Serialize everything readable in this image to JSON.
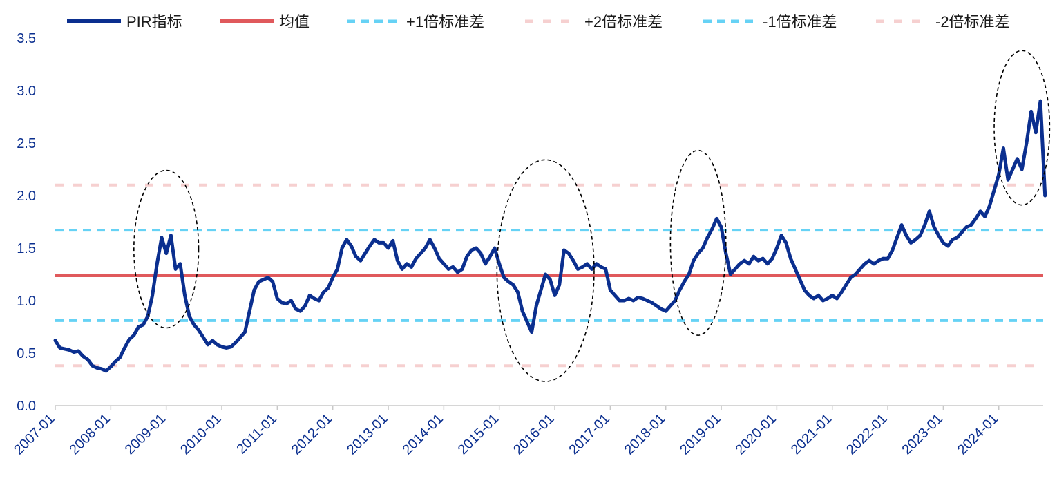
{
  "colors": {
    "pir": "#0b2f8f",
    "mean": "#e0595c",
    "sd1": "#66d2f5",
    "sd2": "#f6d0d0",
    "axis": "#c8c8c8",
    "tick_text": "#0b2f8f",
    "legend_text": "#1a1a1a",
    "ellipse": "#000000"
  },
  "chart_data": {
    "type": "line",
    "legend_position": "top",
    "grid": false,
    "xlabel": "",
    "ylabel": "",
    "x_ticks": [
      "2007-01",
      "2008-01",
      "2009-01",
      "2010-01",
      "2011-01",
      "2012-01",
      "2013-01",
      "2014-01",
      "2015-01",
      "2016-01",
      "2017-01",
      "2018-01",
      "2019-01",
      "2020-01",
      "2021-01",
      "2022-01",
      "2023-01",
      "2024-01"
    ],
    "x_range": [
      "2007-01",
      "2024-10"
    ],
    "y_ticks": [
      "0.0",
      "0.5",
      "1.0",
      "1.5",
      "2.0",
      "2.5",
      "3.0",
      "3.5"
    ],
    "ylim": [
      0,
      3.5
    ],
    "legend": [
      {
        "key": "pir",
        "label": "PIR指标",
        "style": "solid"
      },
      {
        "key": "mean",
        "label": "均值",
        "style": "solid"
      },
      {
        "key": "plus1sd",
        "label": "+1倍标准差",
        "style": "dashed"
      },
      {
        "key": "plus2sd",
        "label": "+2倍标准差",
        "style": "dashed"
      },
      {
        "key": "minus1sd",
        "label": "-1倍标准差",
        "style": "dashed"
      },
      {
        "key": "minus2sd",
        "label": "-2倍标准差",
        "style": "dashed"
      }
    ],
    "reference_lines": {
      "mean": 1.24,
      "plus1sd": 1.67,
      "plus2sd": 2.1,
      "minus1sd": 0.81,
      "minus2sd": 0.38
    },
    "series": [
      {
        "key": "pir",
        "name": "PIR指标",
        "points": [
          [
            "2007-01",
            0.62
          ],
          [
            "2007-02",
            0.55
          ],
          [
            "2007-03",
            0.54
          ],
          [
            "2007-04",
            0.53
          ],
          [
            "2007-05",
            0.51
          ],
          [
            "2007-06",
            0.52
          ],
          [
            "2007-07",
            0.47
          ],
          [
            "2007-08",
            0.44
          ],
          [
            "2007-09",
            0.38
          ],
          [
            "2007-10",
            0.36
          ],
          [
            "2007-11",
            0.35
          ],
          [
            "2007-12",
            0.33
          ],
          [
            "2008-01",
            0.37
          ],
          [
            "2008-02",
            0.42
          ],
          [
            "2008-03",
            0.46
          ],
          [
            "2008-04",
            0.55
          ],
          [
            "2008-05",
            0.63
          ],
          [
            "2008-06",
            0.67
          ],
          [
            "2008-07",
            0.75
          ],
          [
            "2008-08",
            0.77
          ],
          [
            "2008-09",
            0.85
          ],
          [
            "2008-10",
            1.05
          ],
          [
            "2008-11",
            1.35
          ],
          [
            "2008-12",
            1.6
          ],
          [
            "2009-01",
            1.45
          ],
          [
            "2009-02",
            1.62
          ],
          [
            "2009-03",
            1.3
          ],
          [
            "2009-04",
            1.35
          ],
          [
            "2009-05",
            1.05
          ],
          [
            "2009-06",
            0.85
          ],
          [
            "2009-07",
            0.77
          ],
          [
            "2009-08",
            0.72
          ],
          [
            "2009-09",
            0.65
          ],
          [
            "2009-10",
            0.58
          ],
          [
            "2009-11",
            0.62
          ],
          [
            "2009-12",
            0.58
          ],
          [
            "2010-01",
            0.56
          ],
          [
            "2010-02",
            0.55
          ],
          [
            "2010-03",
            0.56
          ],
          [
            "2010-04",
            0.6
          ],
          [
            "2010-05",
            0.65
          ],
          [
            "2010-06",
            0.7
          ],
          [
            "2010-07",
            0.9
          ],
          [
            "2010-08",
            1.1
          ],
          [
            "2010-09",
            1.18
          ],
          [
            "2010-10",
            1.2
          ],
          [
            "2010-11",
            1.22
          ],
          [
            "2010-12",
            1.18
          ],
          [
            "2011-01",
            1.02
          ],
          [
            "2011-02",
            0.98
          ],
          [
            "2011-03",
            0.97
          ],
          [
            "2011-04",
            1.0
          ],
          [
            "2011-05",
            0.92
          ],
          [
            "2011-06",
            0.9
          ],
          [
            "2011-07",
            0.95
          ],
          [
            "2011-08",
            1.05
          ],
          [
            "2011-09",
            1.02
          ],
          [
            "2011-10",
            1.0
          ],
          [
            "2011-11",
            1.08
          ],
          [
            "2011-12",
            1.12
          ],
          [
            "2012-01",
            1.22
          ],
          [
            "2012-02",
            1.3
          ],
          [
            "2012-03",
            1.5
          ],
          [
            "2012-04",
            1.58
          ],
          [
            "2012-05",
            1.52
          ],
          [
            "2012-06",
            1.42
          ],
          [
            "2012-07",
            1.38
          ],
          [
            "2012-08",
            1.45
          ],
          [
            "2012-09",
            1.52
          ],
          [
            "2012-10",
            1.58
          ],
          [
            "2012-11",
            1.55
          ],
          [
            "2012-12",
            1.55
          ],
          [
            "2013-01",
            1.5
          ],
          [
            "2013-02",
            1.57
          ],
          [
            "2013-03",
            1.38
          ],
          [
            "2013-04",
            1.3
          ],
          [
            "2013-05",
            1.35
          ],
          [
            "2013-06",
            1.32
          ],
          [
            "2013-07",
            1.4
          ],
          [
            "2013-08",
            1.45
          ],
          [
            "2013-09",
            1.5
          ],
          [
            "2013-10",
            1.58
          ],
          [
            "2013-11",
            1.5
          ],
          [
            "2013-12",
            1.4
          ],
          [
            "2014-01",
            1.35
          ],
          [
            "2014-02",
            1.3
          ],
          [
            "2014-03",
            1.32
          ],
          [
            "2014-04",
            1.27
          ],
          [
            "2014-05",
            1.3
          ],
          [
            "2014-06",
            1.42
          ],
          [
            "2014-07",
            1.48
          ],
          [
            "2014-08",
            1.5
          ],
          [
            "2014-09",
            1.45
          ],
          [
            "2014-10",
            1.35
          ],
          [
            "2014-11",
            1.42
          ],
          [
            "2014-12",
            1.5
          ],
          [
            "2015-01",
            1.35
          ],
          [
            "2015-02",
            1.22
          ],
          [
            "2015-03",
            1.18
          ],
          [
            "2015-04",
            1.15
          ],
          [
            "2015-05",
            1.08
          ],
          [
            "2015-06",
            0.9
          ],
          [
            "2015-07",
            0.8
          ],
          [
            "2015-08",
            0.7
          ],
          [
            "2015-09",
            0.95
          ],
          [
            "2015-10",
            1.1
          ],
          [
            "2015-11",
            1.25
          ],
          [
            "2015-12",
            1.2
          ],
          [
            "2016-01",
            1.05
          ],
          [
            "2016-02",
            1.15
          ],
          [
            "2016-03",
            1.48
          ],
          [
            "2016-04",
            1.45
          ],
          [
            "2016-05",
            1.38
          ],
          [
            "2016-06",
            1.3
          ],
          [
            "2016-07",
            1.32
          ],
          [
            "2016-08",
            1.35
          ],
          [
            "2016-09",
            1.3
          ],
          [
            "2016-10",
            1.35
          ],
          [
            "2016-11",
            1.32
          ],
          [
            "2016-12",
            1.3
          ],
          [
            "2017-01",
            1.1
          ],
          [
            "2017-02",
            1.05
          ],
          [
            "2017-03",
            1.0
          ],
          [
            "2017-04",
            1.0
          ],
          [
            "2017-05",
            1.02
          ],
          [
            "2017-06",
            1.0
          ],
          [
            "2017-07",
            1.03
          ],
          [
            "2017-08",
            1.02
          ],
          [
            "2017-09",
            1.0
          ],
          [
            "2017-10",
            0.98
          ],
          [
            "2017-11",
            0.95
          ],
          [
            "2017-12",
            0.92
          ],
          [
            "2018-01",
            0.9
          ],
          [
            "2018-02",
            0.95
          ],
          [
            "2018-03",
            1.0
          ],
          [
            "2018-04",
            1.1
          ],
          [
            "2018-05",
            1.18
          ],
          [
            "2018-06",
            1.25
          ],
          [
            "2018-07",
            1.38
          ],
          [
            "2018-08",
            1.45
          ],
          [
            "2018-09",
            1.5
          ],
          [
            "2018-10",
            1.6
          ],
          [
            "2018-11",
            1.68
          ],
          [
            "2018-12",
            1.78
          ],
          [
            "2019-01",
            1.7
          ],
          [
            "2019-02",
            1.45
          ],
          [
            "2019-03",
            1.25
          ],
          [
            "2019-04",
            1.3
          ],
          [
            "2019-05",
            1.35
          ],
          [
            "2019-06",
            1.38
          ],
          [
            "2019-07",
            1.35
          ],
          [
            "2019-08",
            1.42
          ],
          [
            "2019-09",
            1.38
          ],
          [
            "2019-10",
            1.4
          ],
          [
            "2019-11",
            1.35
          ],
          [
            "2019-12",
            1.4
          ],
          [
            "2020-01",
            1.5
          ],
          [
            "2020-02",
            1.62
          ],
          [
            "2020-03",
            1.55
          ],
          [
            "2020-04",
            1.4
          ],
          [
            "2020-05",
            1.3
          ],
          [
            "2020-06",
            1.2
          ],
          [
            "2020-07",
            1.1
          ],
          [
            "2020-08",
            1.05
          ],
          [
            "2020-09",
            1.02
          ],
          [
            "2020-10",
            1.05
          ],
          [
            "2020-11",
            1.0
          ],
          [
            "2020-12",
            1.02
          ],
          [
            "2021-01",
            1.05
          ],
          [
            "2021-02",
            1.02
          ],
          [
            "2021-03",
            1.08
          ],
          [
            "2021-04",
            1.15
          ],
          [
            "2021-05",
            1.22
          ],
          [
            "2021-06",
            1.25
          ],
          [
            "2021-07",
            1.3
          ],
          [
            "2021-08",
            1.35
          ],
          [
            "2021-09",
            1.38
          ],
          [
            "2021-10",
            1.35
          ],
          [
            "2021-11",
            1.38
          ],
          [
            "2021-12",
            1.4
          ],
          [
            "2022-01",
            1.4
          ],
          [
            "2022-02",
            1.48
          ],
          [
            "2022-03",
            1.6
          ],
          [
            "2022-04",
            1.72
          ],
          [
            "2022-05",
            1.62
          ],
          [
            "2022-06",
            1.55
          ],
          [
            "2022-07",
            1.58
          ],
          [
            "2022-08",
            1.62
          ],
          [
            "2022-09",
            1.72
          ],
          [
            "2022-10",
            1.85
          ],
          [
            "2022-11",
            1.7
          ],
          [
            "2022-12",
            1.62
          ],
          [
            "2023-01",
            1.55
          ],
          [
            "2023-02",
            1.52
          ],
          [
            "2023-03",
            1.58
          ],
          [
            "2023-04",
            1.6
          ],
          [
            "2023-05",
            1.65
          ],
          [
            "2023-06",
            1.7
          ],
          [
            "2023-07",
            1.72
          ],
          [
            "2023-08",
            1.78
          ],
          [
            "2023-09",
            1.85
          ],
          [
            "2023-10",
            1.8
          ],
          [
            "2023-11",
            1.9
          ],
          [
            "2023-12",
            2.05
          ],
          [
            "2024-01",
            2.2
          ],
          [
            "2024-02",
            2.45
          ],
          [
            "2024-03",
            2.15
          ],
          [
            "2024-04",
            2.25
          ],
          [
            "2024-05",
            2.35
          ],
          [
            "2024-06",
            2.25
          ],
          [
            "2024-07",
            2.5
          ],
          [
            "2024-08",
            2.8
          ],
          [
            "2024-09",
            2.6
          ],
          [
            "2024-10",
            2.9
          ],
          [
            "2024-11",
            2.0
          ]
        ]
      }
    ],
    "annotations": [
      {
        "type": "dashed-ellipse",
        "x_center": "2009-01",
        "x_span_months": 14,
        "y_range": [
          0.74,
          2.24
        ]
      },
      {
        "type": "dashed-ellipse",
        "x_center": "2015-11",
        "x_span_months": 21,
        "y_range": [
          0.23,
          2.34
        ]
      },
      {
        "type": "dashed-ellipse",
        "x_center": "2018-08",
        "x_span_months": 12,
        "y_range": [
          0.67,
          2.43
        ]
      },
      {
        "type": "dashed-ellipse",
        "x_center": "2024-06",
        "x_span_months": 12,
        "y_range": [
          1.91,
          3.38
        ]
      }
    ]
  }
}
